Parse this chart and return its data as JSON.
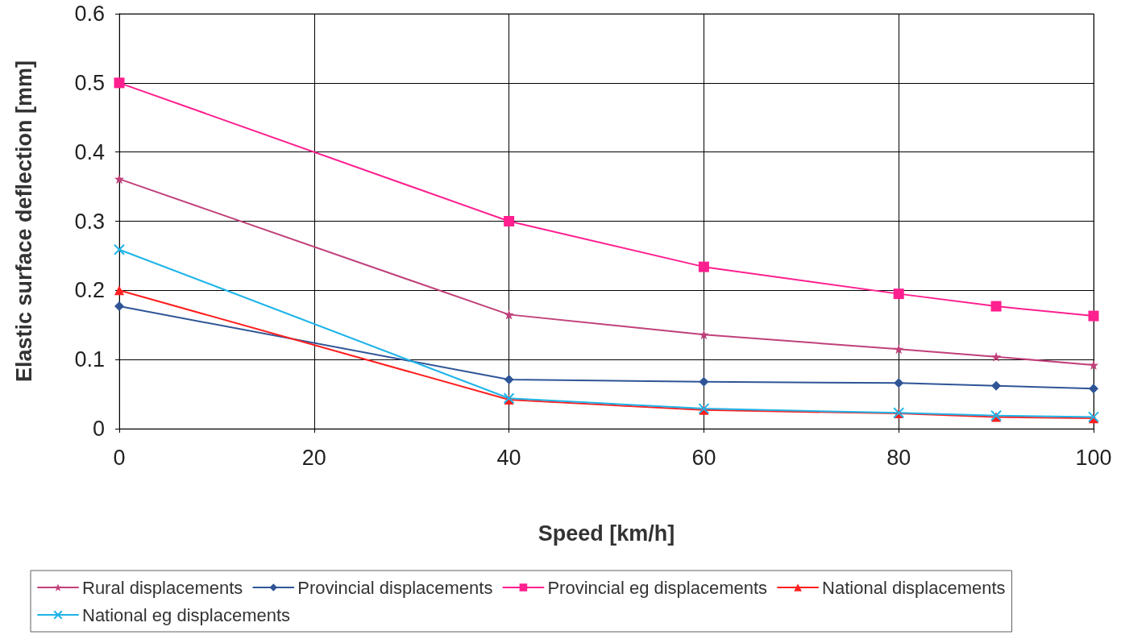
{
  "chart_data": {
    "type": "line",
    "xlabel": "Speed [km/h]",
    "ylabel": "Elastic surface deflection [mm]",
    "x": [
      0,
      40,
      60,
      80,
      90,
      100
    ],
    "series": [
      {
        "name": "Rural displacements",
        "color": "#c0407a",
        "marker": "star",
        "values": [
          0.361,
          0.165,
          0.136,
          0.115,
          0.104,
          0.092
        ]
      },
      {
        "name": "Provincial displacements",
        "color": "#2f5597",
        "marker": "diamond",
        "values": [
          0.177,
          0.071,
          0.068,
          0.066,
          0.062,
          0.058
        ]
      },
      {
        "name": "Provincial eg displacements",
        "color": "#ff1f8f",
        "marker": "square",
        "values": [
          0.5,
          0.3,
          0.234,
          0.195,
          0.177,
          0.163
        ]
      },
      {
        "name": "National displacements",
        "color": "#ff1f1f",
        "marker": "triangle",
        "values": [
          0.2,
          0.042,
          0.027,
          0.022,
          0.017,
          0.015
        ]
      },
      {
        "name": "National eg displacements",
        "color": "#1fb4e8",
        "marker": "cross",
        "values": [
          0.259,
          0.044,
          0.029,
          0.023,
          0.019,
          0.017
        ]
      }
    ],
    "xlim": [
      0,
      100
    ],
    "xticks": [
      0,
      20,
      40,
      60,
      80,
      100
    ],
    "ylim": [
      0,
      0.6
    ],
    "yticks": [
      0,
      0.1,
      0.2,
      0.3,
      0.4,
      0.5,
      0.6
    ],
    "grid": true,
    "legend": "bottom",
    "line_style": "solid"
  }
}
